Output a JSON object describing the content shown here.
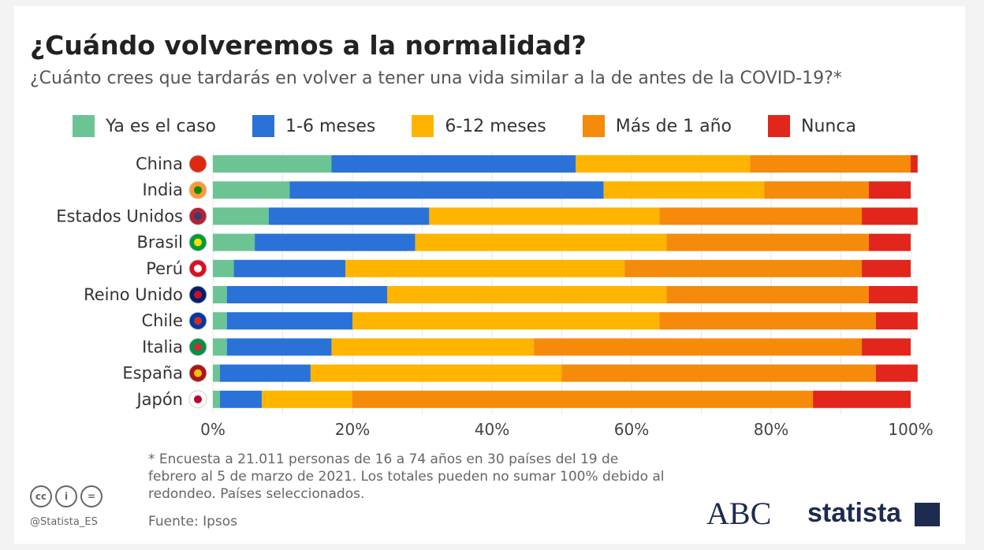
{
  "title": "¿Cuándo volveremos a la normalidad?",
  "subtitle": "¿Cuánto crees que tardarás en volver a tener una vida similar a la de antes de la COVID-19?*",
  "chart_data": {
    "type": "bar",
    "orientation": "horizontal-stacked",
    "categories": [
      "China",
      "India",
      "Estados Unidos",
      "Brasil",
      "Perú",
      "Reino Unido",
      "Chile",
      "Italia",
      "España",
      "Japón"
    ],
    "series": [
      {
        "name": "Ya es el caso",
        "color": "#6cc494",
        "values": [
          17,
          11,
          8,
          6,
          3,
          2,
          2,
          2,
          1,
          1
        ]
      },
      {
        "name": "1-6 meses",
        "color": "#2a72d8",
        "values": [
          35,
          45,
          23,
          23,
          16,
          23,
          18,
          15,
          13,
          6
        ]
      },
      {
        "name": "6-12 meses",
        "color": "#ffb400",
        "values": [
          25,
          23,
          33,
          36,
          40,
          40,
          44,
          29,
          36,
          13
        ]
      },
      {
        "name": "Más de 1 año",
        "color": "#f58a0b",
        "values": [
          23,
          15,
          29,
          29,
          34,
          29,
          31,
          47,
          45,
          66
        ]
      },
      {
        "name": "Nunca",
        "color": "#e2261c",
        "values": [
          1,
          6,
          8,
          6,
          7,
          7,
          6,
          7,
          6,
          14
        ]
      }
    ],
    "xlim": [
      0,
      100
    ],
    "xticks": [
      "0%",
      "20%",
      "40%",
      "60%",
      "80%",
      "100%"
    ],
    "grid": true,
    "legend": "top"
  },
  "flags": [
    "china-flag",
    "india-flag",
    "usa-flag",
    "brazil-flag",
    "peru-flag",
    "uk-flag",
    "chile-flag",
    "italy-flag",
    "spain-flag",
    "japan-flag"
  ],
  "footnote": "* Encuesta a 21.011 personas de 16 a 74 años en 30 países del 19 de febrero al 5 de marzo de 2021. Los totales pueden no sumar 100% debido al redondeo. Países seleccionados.",
  "source": "Fuente: Ipsos",
  "handle": "@Statista_ES",
  "license_icons": [
    "cc",
    "i",
    "="
  ],
  "logos": {
    "abc": "ABC",
    "statista": "statista"
  }
}
